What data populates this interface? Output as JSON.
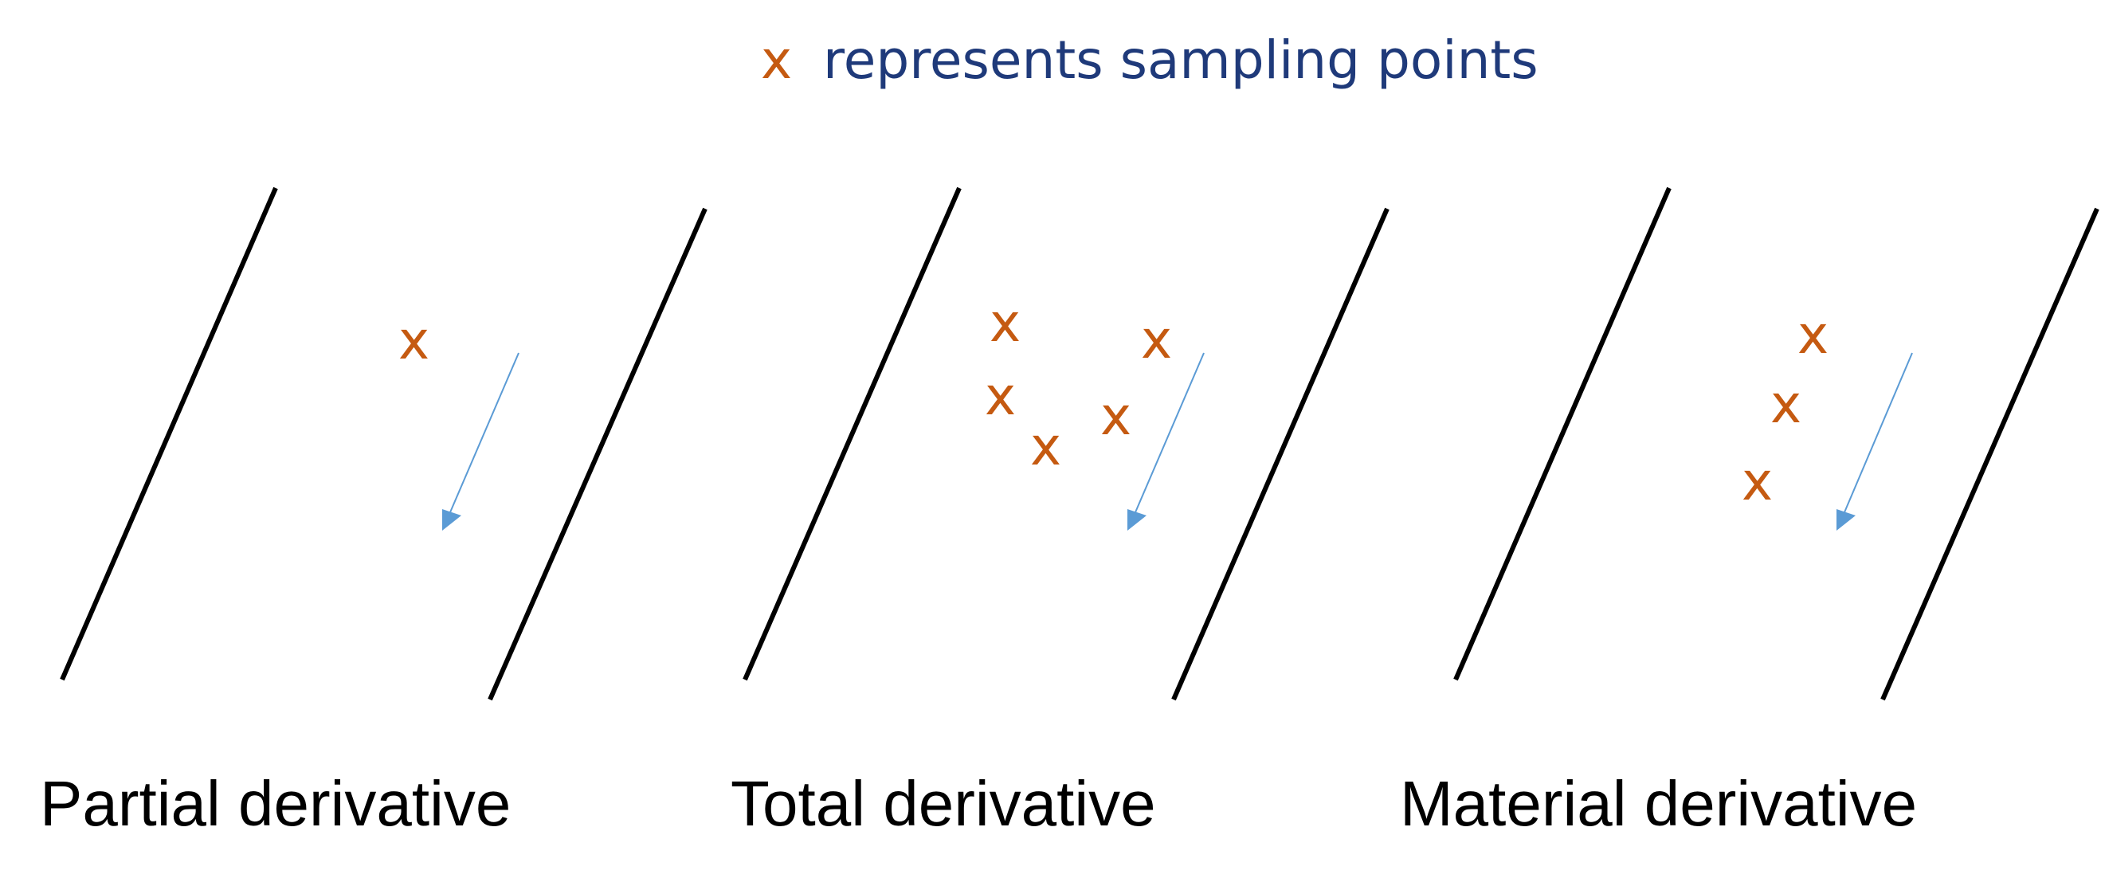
{
  "legend": {
    "marker": "x",
    "text": "represents sampling points"
  },
  "panels": [
    {
      "caption": "Partial derivative",
      "sampling_points": [
        {
          "label": "x"
        }
      ]
    },
    {
      "caption": "Total derivative",
      "sampling_points": [
        {
          "label": "x"
        },
        {
          "label": "x"
        },
        {
          "label": "x"
        },
        {
          "label": "x"
        },
        {
          "label": "x"
        }
      ]
    },
    {
      "caption": "Material derivative",
      "sampling_points": [
        {
          "label": "x"
        },
        {
          "label": "x"
        },
        {
          "label": "x"
        }
      ]
    }
  ],
  "colors": {
    "marker": "#C55A11",
    "legend_text": "#1F3A7A",
    "arrow": "#5B9BD5",
    "lines": "#000000",
    "caption": "#000000"
  }
}
